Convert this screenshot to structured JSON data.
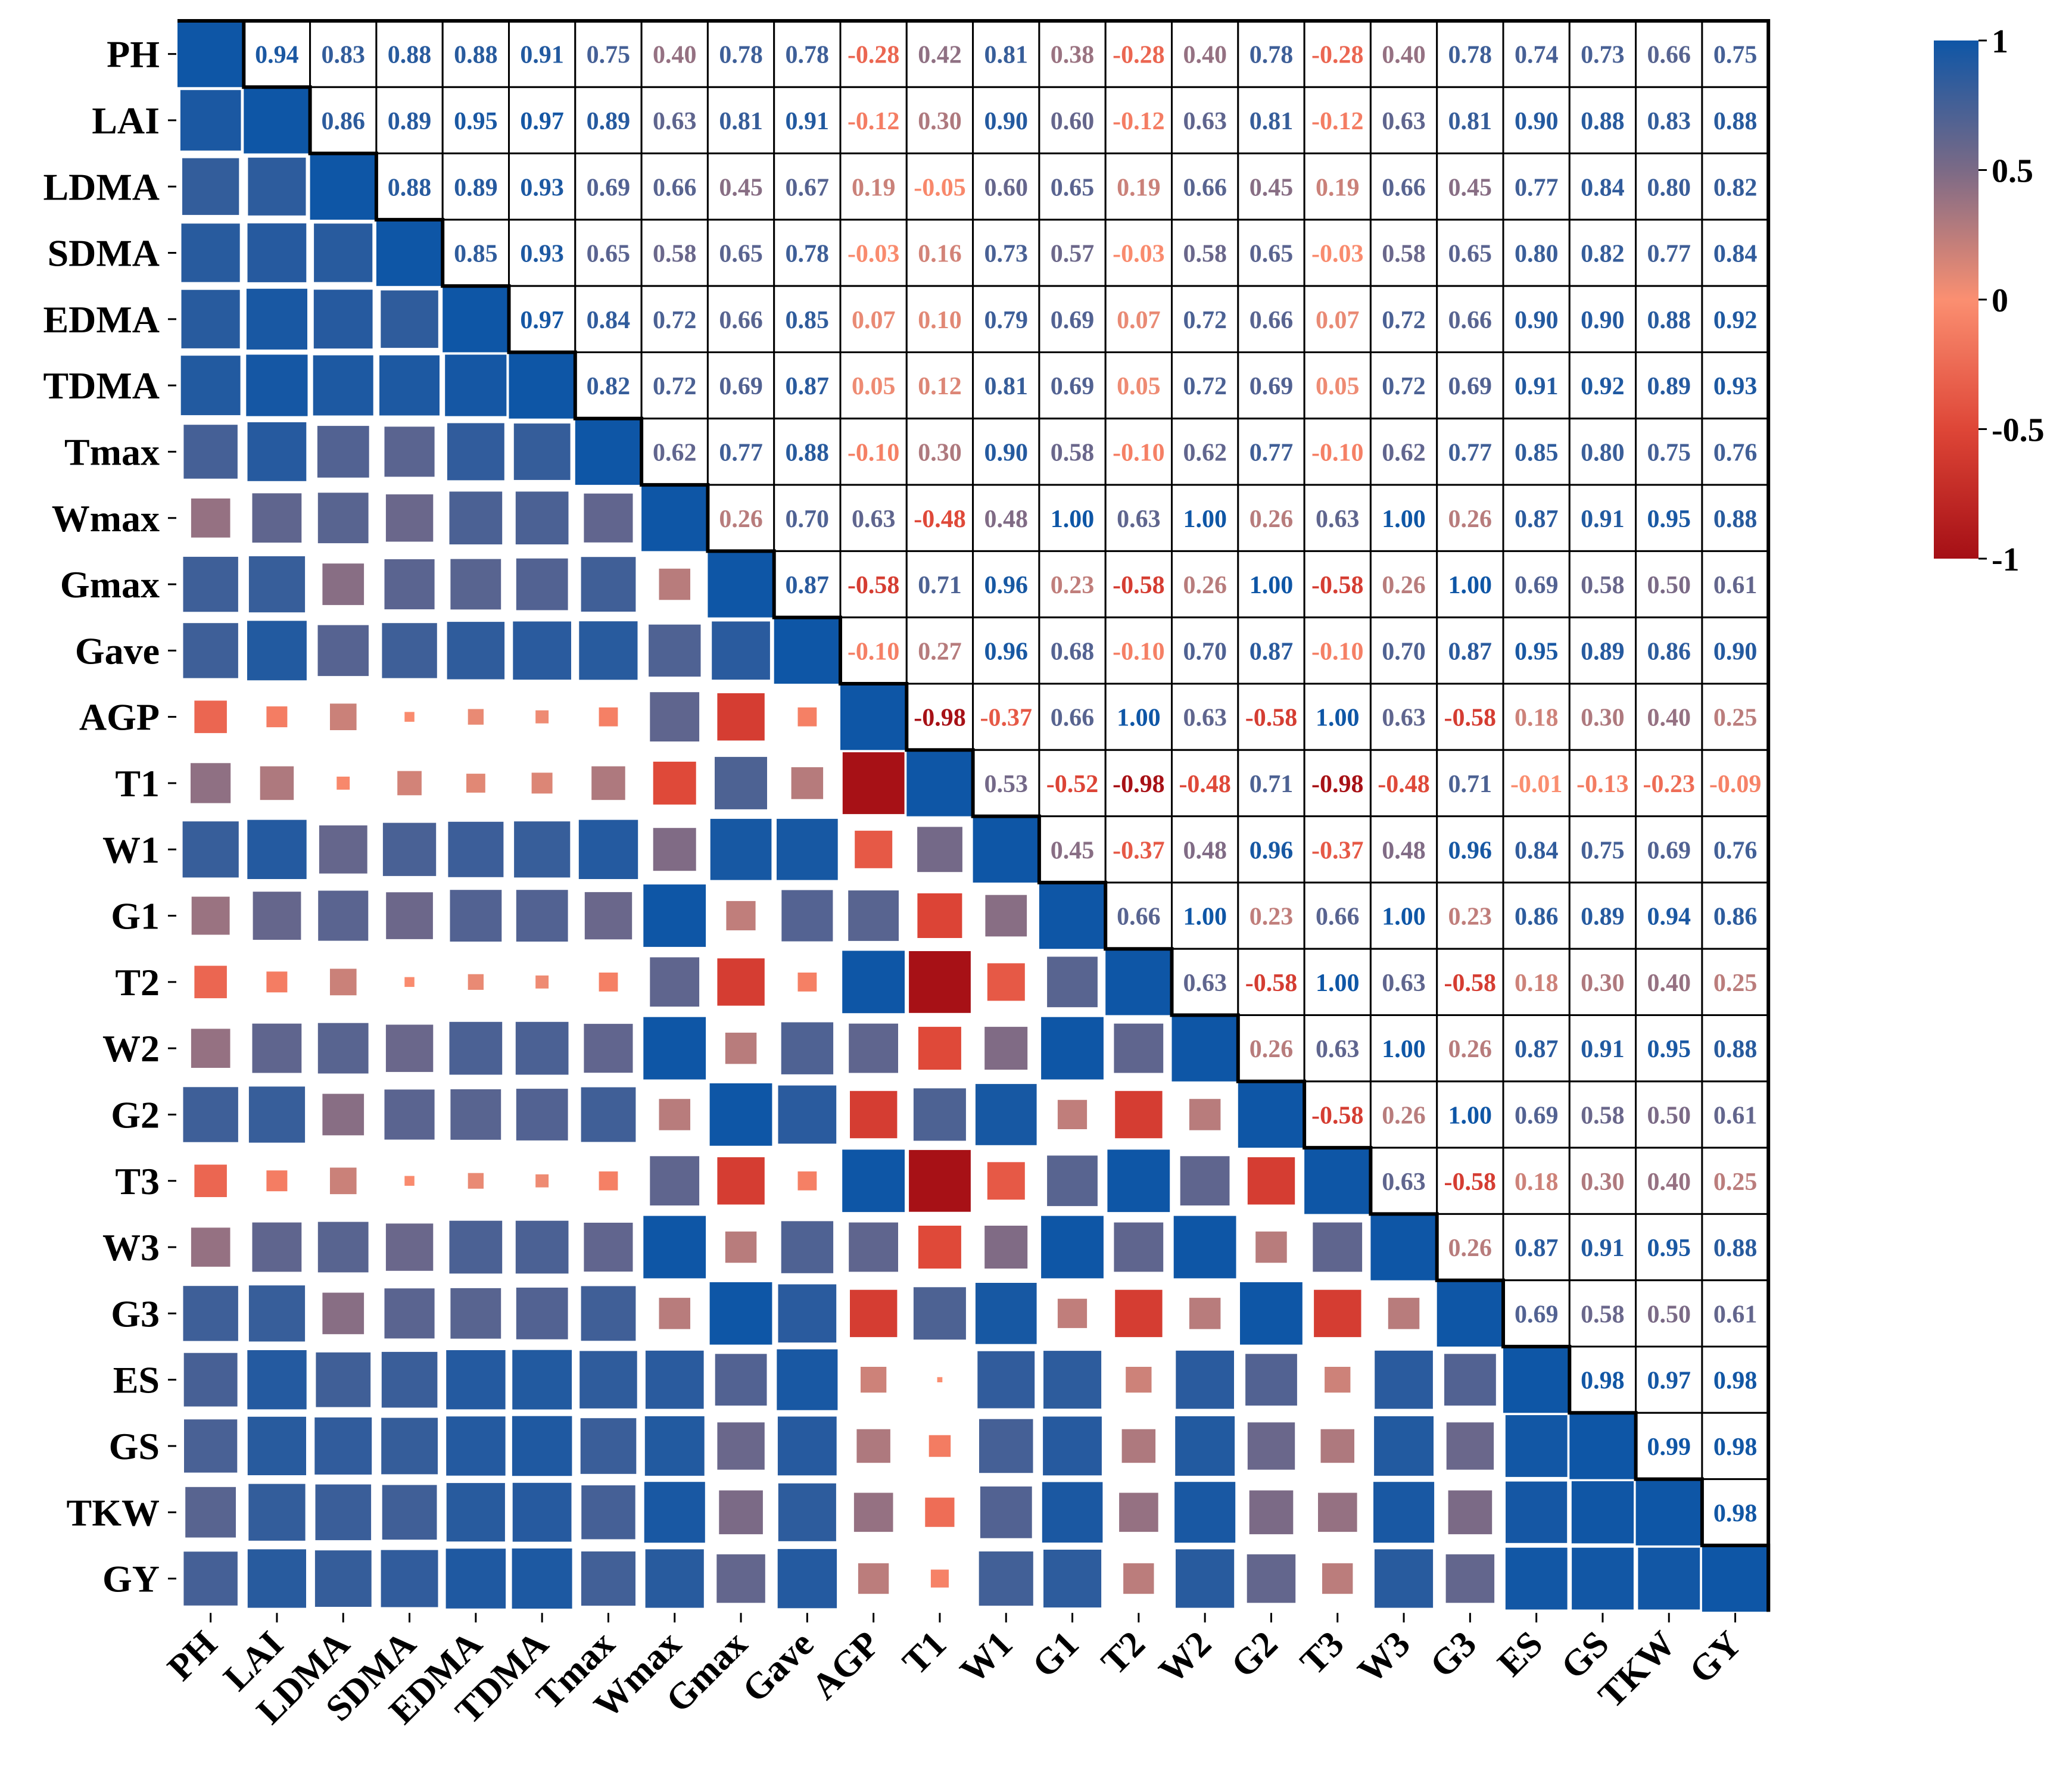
{
  "chart_data": {
    "type": "heatmap",
    "title": "",
    "xlabel": "",
    "ylabel": "",
    "variables": [
      "PH",
      "LAI",
      "LDMA",
      "SDMA",
      "EDMA",
      "TDMA",
      "Tmax",
      "Wmax",
      "Gmax",
      "Gave",
      "AGP",
      "T1",
      "W1",
      "G1",
      "T2",
      "W2",
      "G2",
      "T3",
      "W3",
      "G3",
      "ES",
      "GS",
      "TKW",
      "GY"
    ],
    "matrix": [
      [
        1.0,
        0.94,
        0.83,
        0.88,
        0.88,
        0.91,
        0.75,
        0.4,
        0.78,
        0.78,
        -0.28,
        0.42,
        0.81,
        0.38,
        -0.28,
        0.4,
        0.78,
        -0.28,
        0.4,
        0.78,
        0.74,
        0.73,
        0.66,
        0.75
      ],
      [
        0.94,
        1.0,
        0.86,
        0.89,
        0.95,
        0.97,
        0.89,
        0.63,
        0.81,
        0.91,
        -0.12,
        0.3,
        0.9,
        0.6,
        -0.12,
        0.63,
        0.81,
        -0.12,
        0.63,
        0.81,
        0.9,
        0.88,
        0.83,
        0.88
      ],
      [
        0.83,
        0.86,
        1.0,
        0.88,
        0.89,
        0.93,
        0.69,
        0.66,
        0.45,
        0.67,
        0.19,
        -0.05,
        0.6,
        0.65,
        0.19,
        0.66,
        0.45,
        0.19,
        0.66,
        0.45,
        0.77,
        0.84,
        0.8,
        0.82
      ],
      [
        0.88,
        0.89,
        0.88,
        1.0,
        0.85,
        0.93,
        0.65,
        0.58,
        0.65,
        0.78,
        -0.03,
        0.16,
        0.73,
        0.57,
        -0.03,
        0.58,
        0.65,
        -0.03,
        0.58,
        0.65,
        0.8,
        0.82,
        0.77,
        0.84
      ],
      [
        0.88,
        0.95,
        0.89,
        0.85,
        1.0,
        0.97,
        0.84,
        0.72,
        0.66,
        0.85,
        0.07,
        0.1,
        0.79,
        0.69,
        0.07,
        0.72,
        0.66,
        0.07,
        0.72,
        0.66,
        0.9,
        0.9,
        0.88,
        0.92
      ],
      [
        0.91,
        0.97,
        0.93,
        0.93,
        0.97,
        1.0,
        0.82,
        0.72,
        0.69,
        0.87,
        0.05,
        0.12,
        0.81,
        0.69,
        0.05,
        0.72,
        0.69,
        0.05,
        0.72,
        0.69,
        0.91,
        0.92,
        0.89,
        0.93
      ],
      [
        0.75,
        0.89,
        0.69,
        0.65,
        0.84,
        0.82,
        1.0,
        0.62,
        0.77,
        0.88,
        -0.1,
        0.3,
        0.9,
        0.58,
        -0.1,
        0.62,
        0.77,
        -0.1,
        0.62,
        0.77,
        0.85,
        0.8,
        0.75,
        0.76
      ],
      [
        0.4,
        0.63,
        0.66,
        0.58,
        0.72,
        0.72,
        0.62,
        1.0,
        0.26,
        0.7,
        0.63,
        -0.48,
        0.48,
        1.0,
        0.63,
        1.0,
        0.26,
        0.63,
        1.0,
        0.26,
        0.87,
        0.91,
        0.95,
        0.88
      ],
      [
        0.78,
        0.81,
        0.45,
        0.65,
        0.66,
        0.69,
        0.77,
        0.26,
        1.0,
        0.87,
        -0.58,
        0.71,
        0.96,
        0.23,
        -0.58,
        0.26,
        1.0,
        -0.58,
        0.26,
        1.0,
        0.69,
        0.58,
        0.5,
        0.61
      ],
      [
        0.78,
        0.91,
        0.67,
        0.78,
        0.85,
        0.87,
        0.88,
        0.7,
        0.87,
        1.0,
        -0.1,
        0.27,
        0.96,
        0.68,
        -0.1,
        0.7,
        0.87,
        -0.1,
        0.7,
        0.87,
        0.95,
        0.89,
        0.86,
        0.9
      ],
      [
        -0.28,
        -0.12,
        0.19,
        -0.03,
        0.07,
        0.05,
        -0.1,
        0.63,
        -0.58,
        -0.1,
        1.0,
        -0.98,
        -0.37,
        0.66,
        1.0,
        0.63,
        -0.58,
        1.0,
        0.63,
        -0.58,
        0.18,
        0.3,
        0.4,
        0.25
      ],
      [
        0.42,
        0.3,
        -0.05,
        0.16,
        0.1,
        0.12,
        0.3,
        -0.48,
        0.71,
        0.27,
        -0.98,
        1.0,
        0.53,
        -0.52,
        -0.98,
        -0.48,
        0.71,
        -0.98,
        -0.48,
        0.71,
        -0.01,
        -0.13,
        -0.23,
        -0.09
      ],
      [
        0.81,
        0.9,
        0.6,
        0.73,
        0.79,
        0.81,
        0.9,
        0.48,
        0.96,
        0.96,
        -0.37,
        0.53,
        1.0,
        0.45,
        -0.37,
        0.48,
        0.96,
        -0.37,
        0.48,
        0.96,
        0.84,
        0.75,
        0.69,
        0.76
      ],
      [
        0.38,
        0.6,
        0.65,
        0.57,
        0.69,
        0.69,
        0.58,
        1.0,
        0.23,
        0.68,
        0.66,
        -0.52,
        0.45,
        1.0,
        0.66,
        1.0,
        0.23,
        0.66,
        1.0,
        0.23,
        0.86,
        0.89,
        0.94,
        0.86
      ],
      [
        -0.28,
        -0.12,
        0.19,
        -0.03,
        0.07,
        0.05,
        -0.1,
        0.63,
        -0.58,
        -0.1,
        1.0,
        -0.98,
        -0.37,
        0.66,
        1.0,
        0.63,
        -0.58,
        1.0,
        0.63,
        -0.58,
        0.18,
        0.3,
        0.4,
        0.25
      ],
      [
        0.4,
        0.63,
        0.66,
        0.58,
        0.72,
        0.72,
        0.62,
        1.0,
        0.26,
        0.7,
        0.63,
        -0.48,
        0.48,
        1.0,
        0.63,
        1.0,
        0.26,
        0.63,
        1.0,
        0.26,
        0.87,
        0.91,
        0.95,
        0.88
      ],
      [
        0.78,
        0.81,
        0.45,
        0.65,
        0.66,
        0.69,
        0.77,
        0.26,
        1.0,
        0.87,
        -0.58,
        0.71,
        0.96,
        0.23,
        -0.58,
        0.26,
        1.0,
        -0.58,
        0.26,
        1.0,
        0.69,
        0.58,
        0.5,
        0.61
      ],
      [
        -0.28,
        -0.12,
        0.19,
        -0.03,
        0.07,
        0.05,
        -0.1,
        0.63,
        -0.58,
        -0.1,
        1.0,
        -0.98,
        -0.37,
        0.66,
        1.0,
        0.63,
        -0.58,
        1.0,
        0.63,
        -0.58,
        0.18,
        0.3,
        0.4,
        0.25
      ],
      [
        0.4,
        0.63,
        0.66,
        0.58,
        0.72,
        0.72,
        0.62,
        1.0,
        0.26,
        0.7,
        0.63,
        -0.48,
        0.48,
        1.0,
        0.63,
        1.0,
        0.26,
        0.63,
        1.0,
        0.26,
        0.87,
        0.91,
        0.95,
        0.88
      ],
      [
        0.78,
        0.81,
        0.45,
        0.65,
        0.66,
        0.69,
        0.77,
        0.26,
        1.0,
        0.87,
        -0.58,
        0.71,
        0.96,
        0.23,
        -0.58,
        0.26,
        1.0,
        -0.58,
        0.26,
        1.0,
        0.69,
        0.58,
        0.5,
        0.61
      ],
      [
        0.74,
        0.9,
        0.77,
        0.8,
        0.9,
        0.91,
        0.85,
        0.87,
        0.69,
        0.95,
        0.18,
        -0.01,
        0.84,
        0.86,
        0.18,
        0.87,
        0.69,
        0.18,
        0.87,
        0.69,
        1.0,
        0.98,
        0.97,
        0.98
      ],
      [
        0.73,
        0.88,
        0.84,
        0.82,
        0.9,
        0.92,
        0.8,
        0.91,
        0.58,
        0.89,
        0.3,
        -0.13,
        0.75,
        0.89,
        0.3,
        0.91,
        0.58,
        0.3,
        0.91,
        0.58,
        0.98,
        1.0,
        0.99,
        0.98
      ],
      [
        0.66,
        0.83,
        0.8,
        0.77,
        0.88,
        0.89,
        0.75,
        0.95,
        0.5,
        0.86,
        0.4,
        -0.23,
        0.69,
        0.94,
        0.4,
        0.95,
        0.5,
        0.4,
        0.95,
        0.5,
        0.97,
        0.99,
        1.0,
        0.98
      ],
      [
        0.75,
        0.88,
        0.82,
        0.84,
        0.92,
        0.93,
        0.76,
        0.88,
        0.61,
        0.9,
        0.25,
        -0.09,
        0.76,
        0.86,
        0.25,
        0.88,
        0.61,
        0.25,
        0.88,
        0.61,
        0.98,
        0.98,
        0.98,
        1.0
      ]
    ],
    "lower_triangle": "squares scaled by |r|",
    "upper_triangle": "correlation values as text",
    "colorbar": {
      "range": [
        -1,
        1
      ],
      "ticks": [
        "1",
        "0.5",
        "0",
        "-0.5",
        "-1"
      ],
      "tick_values": [
        1,
        0.5,
        0,
        -0.5,
        -1
      ],
      "colors": {
        "neg": "#a50f15",
        "mid_low": "#fb8f71",
        "mid_high": "#7b6a86",
        "pos": "#0e56a6"
      },
      "position": "right"
    }
  }
}
